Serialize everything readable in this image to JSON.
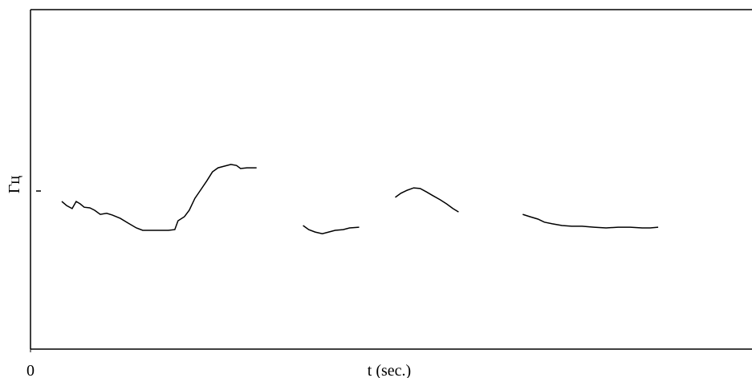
{
  "chart_data": {
    "type": "line",
    "xlabel": "t (sec.)",
    "ylabel": "Гц",
    "color": "#000000",
    "xlim": [
      0,
      9
    ],
    "ylim": [
      0,
      100
    ],
    "xticks": [
      0
    ],
    "x": [
      0.39,
      0.45,
      0.52,
      0.57,
      0.62,
      0.67,
      0.74,
      0.8,
      0.87,
      0.95,
      1.02,
      1.12,
      1.22,
      1.32,
      1.4,
      1.52,
      1.62,
      1.72,
      1.8,
      1.84,
      1.92,
      1.98,
      2.05,
      2.12,
      2.2,
      2.27,
      2.34,
      2.42,
      2.5,
      2.57,
      2.62,
      2.7,
      2.82,
      3.11,
      3.4,
      3.47,
      3.55,
      3.64,
      3.72,
      3.8,
      3.9,
      3.98,
      4.1,
      4.5,
      4.55,
      4.62,
      4.7,
      4.78,
      4.86,
      4.94,
      5.02,
      5.11,
      5.19,
      5.27,
      5.34,
      5.8,
      6.14,
      6.23,
      6.33,
      6.41,
      6.51,
      6.63,
      6.75,
      6.88,
      7.03,
      7.18,
      7.33,
      7.48,
      7.63,
      7.73,
      7.83
    ],
    "values": [
      43.5,
      42.3,
      41.4,
      43.5,
      42.8,
      41.8,
      41.6,
      40.9,
      39.7,
      40.0,
      39.5,
      38.5,
      37.1,
      35.7,
      35.0,
      35.0,
      35.0,
      35.0,
      35.2,
      37.8,
      39.0,
      40.9,
      44.4,
      46.8,
      49.6,
      52.2,
      53.4,
      53.9,
      54.4,
      54.1,
      53.2,
      53.4,
      53.4,
      null,
      36.4,
      35.2,
      34.5,
      34.0,
      34.5,
      35.0,
      35.2,
      35.7,
      35.9,
      null,
      44.7,
      45.9,
      46.8,
      47.5,
      47.3,
      46.3,
      45.2,
      44.0,
      42.8,
      41.4,
      40.4,
      null,
      39.7,
      39.0,
      38.3,
      37.4,
      36.9,
      36.4,
      36.2,
      36.2,
      35.9,
      35.7,
      35.9,
      35.9,
      35.7,
      35.7,
      35.9
    ]
  }
}
